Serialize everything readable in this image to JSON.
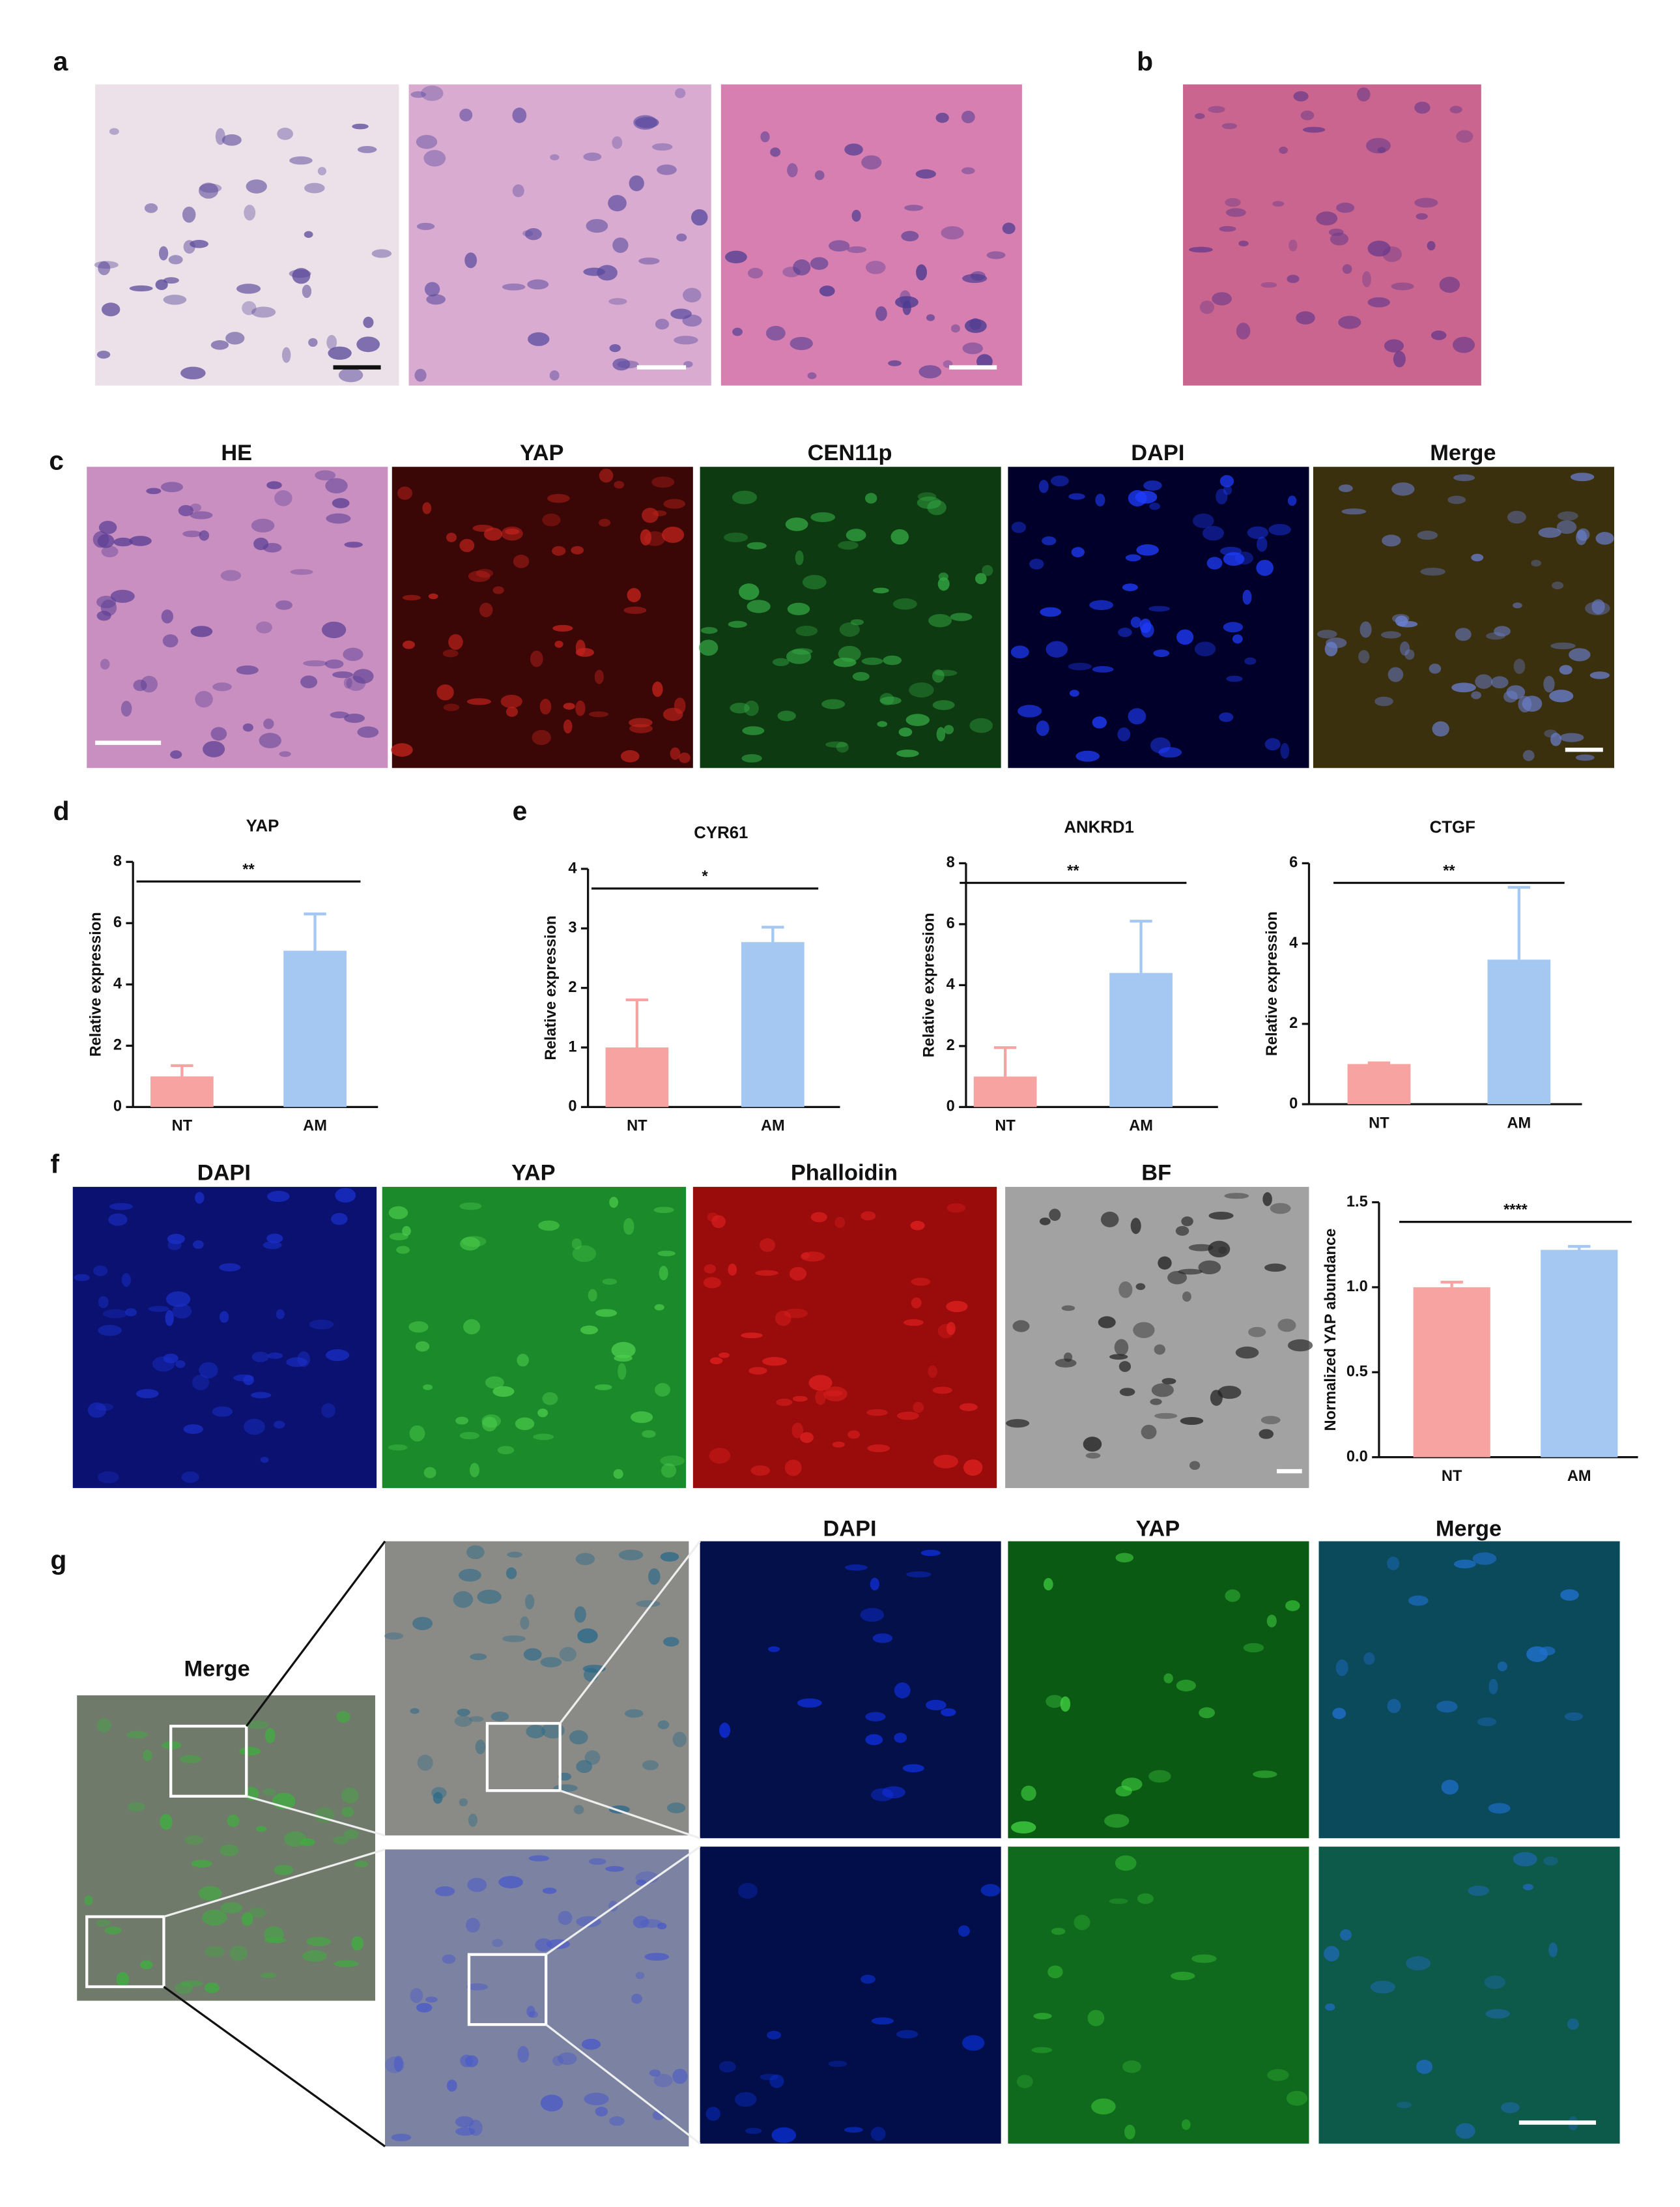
{
  "figure": {
    "panel_labels": [
      "a",
      "b",
      "c",
      "d",
      "e",
      "f",
      "g"
    ],
    "c_titles": [
      "HE",
      "YAP",
      "CEN11p",
      "DAPI",
      "Merge"
    ],
    "f_titles": [
      "DAPI",
      "YAP",
      "Phalloidin",
      "BF"
    ],
    "g_overview_title": "Merge",
    "g_titles": [
      "DAPI",
      "YAP",
      "Merge"
    ]
  },
  "chart_data": [
    {
      "type": "bar",
      "title": "YAP",
      "ylabel": "Relative expression",
      "categories": [
        "NT",
        "AM"
      ],
      "values": [
        1.0,
        5.1
      ],
      "errors": [
        0.35,
        1.2
      ],
      "colors": [
        "#f7a3a2",
        "#a4c8f2"
      ],
      "ylim": [
        0,
        8
      ],
      "yticks": [
        0,
        2,
        4,
        6,
        8
      ],
      "significance": "**"
    },
    {
      "type": "bar",
      "title": "CYR61",
      "ylabel": "Relative expression",
      "categories": [
        "NT",
        "AM"
      ],
      "values": [
        1.0,
        2.77
      ],
      "errors": [
        0.8,
        0.25
      ],
      "colors": [
        "#f7a3a2",
        "#a4c8f2"
      ],
      "ylim": [
        0,
        4
      ],
      "yticks": [
        0,
        1,
        2,
        3,
        4
      ],
      "significance": "*"
    },
    {
      "type": "bar",
      "title": "ANKRD1",
      "ylabel": "Relative expression",
      "categories": [
        "NT",
        "AM"
      ],
      "values": [
        1.0,
        4.4
      ],
      "errors": [
        0.95,
        1.7
      ],
      "colors": [
        "#f7a3a2",
        "#a4c8f2"
      ],
      "ylim": [
        0,
        8
      ],
      "yticks": [
        0,
        2,
        4,
        6,
        8
      ],
      "significance": "**"
    },
    {
      "type": "bar",
      "title": "CTGF",
      "ylabel": "Relative expression",
      "categories": [
        "NT",
        "AM"
      ],
      "values": [
        1.0,
        3.6
      ],
      "errors": [
        0.03,
        1.8
      ],
      "colors": [
        "#f7a3a2",
        "#a4c8f2"
      ],
      "ylim": [
        0,
        6
      ],
      "yticks": [
        0,
        2,
        4,
        6
      ],
      "significance": "**"
    },
    {
      "type": "bar",
      "ylabel": "Normalized YAP abundance",
      "categories": [
        "NT",
        "AM"
      ],
      "values": [
        1.0,
        1.22
      ],
      "errors": [
        0.03,
        0.02
      ],
      "colors": [
        "#f7a3a2",
        "#a4c8f2"
      ],
      "ylim": [
        0,
        1.5
      ],
      "yticks": [
        {
          "value": 0,
          "label": "0.0"
        },
        {
          "value": 0.5,
          "label": "0.5"
        },
        {
          "value": 1,
          "label": "1.0"
        },
        {
          "value": 1.5,
          "label": "1.5"
        }
      ],
      "significance": "****"
    }
  ]
}
